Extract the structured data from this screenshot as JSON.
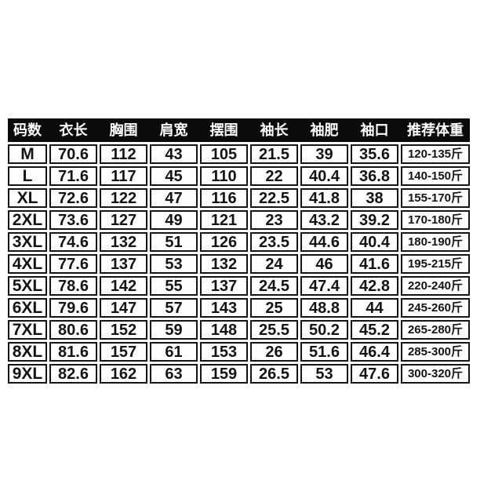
{
  "page": {
    "background_color": "#ffffff",
    "header_bg_color": "#0b0b0b",
    "header_text_color": "#ffffff",
    "cell_border_color": "#141414",
    "cell_text_color": "#131313"
  },
  "chart_data": {
    "type": "table",
    "title": "",
    "columns": [
      "码数",
      "衣长",
      "胸围",
      "肩宽",
      "摆围",
      "袖长",
      "袖肥",
      "袖口",
      "推荐体重"
    ],
    "rows": [
      [
        "M",
        "70.6",
        "112",
        "43",
        "105",
        "21.5",
        "39",
        "35.6",
        "120-135斤"
      ],
      [
        "L",
        "71.6",
        "117",
        "45",
        "110",
        "22",
        "40.4",
        "36.8",
        "140-150斤"
      ],
      [
        "XL",
        "72.6",
        "122",
        "47",
        "116",
        "22.5",
        "41.8",
        "38",
        "155-170斤"
      ],
      [
        "2XL",
        "73.6",
        "127",
        "49",
        "121",
        "23",
        "43.2",
        "39.2",
        "170-180斤"
      ],
      [
        "3XL",
        "74.6",
        "132",
        "51",
        "126",
        "23.5",
        "44.6",
        "40.4",
        "180-190斤"
      ],
      [
        "4XL",
        "77.6",
        "137",
        "53",
        "132",
        "24",
        "46",
        "41.6",
        "195-215斤"
      ],
      [
        "5XL",
        "78.6",
        "142",
        "55",
        "137",
        "24.5",
        "47.4",
        "42.8",
        "220-240斤"
      ],
      [
        "6XL",
        "79.6",
        "147",
        "57",
        "143",
        "25",
        "48.8",
        "44",
        "245-260斤"
      ],
      [
        "7XL",
        "80.6",
        "152",
        "59",
        "148",
        "25.5",
        "50.2",
        "45.2",
        "265-280斤"
      ],
      [
        "8XL",
        "81.6",
        "157",
        "61",
        "153",
        "26",
        "51.6",
        "46.4",
        "285-300斤"
      ],
      [
        "9XL",
        "82.6",
        "162",
        "63",
        "159",
        "26.5",
        "53",
        "47.6",
        "300-320斤"
      ]
    ]
  }
}
